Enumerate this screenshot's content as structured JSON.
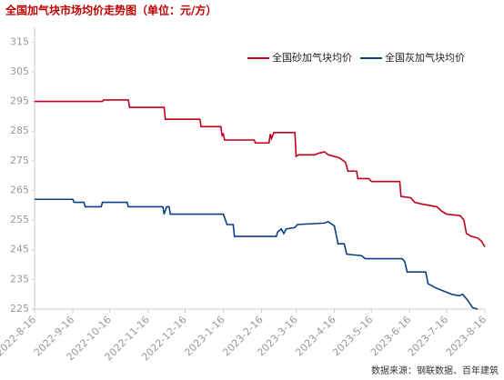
{
  "chart_data": {
    "type": "line",
    "title": "全国加气块市场均价走势图（单位：元/方）",
    "source": "数据来源：钢联数据、百年建筑",
    "legend": "upper right",
    "ylim": [
      225,
      320
    ],
    "yticks": [
      225,
      235,
      245,
      255,
      265,
      275,
      285,
      295,
      305,
      315
    ],
    "xlim": [
      "2022-8-16",
      "2023-8-16"
    ],
    "xticks": [
      "2022-8-16",
      "2022-9-16",
      "2022-10-16",
      "2022-11-16",
      "2022-12-16",
      "2023-1-16",
      "2023-2-16",
      "2023-3-16",
      "2023-4-16",
      "2023-5-16",
      "2023-6-16",
      "2023-7-16",
      "2023-8-16"
    ],
    "series": [
      {
        "name": "全国砂加气块均价",
        "color": "#c0001a",
        "x": [
          "2022-8-16",
          "2022-10-10",
          "2022-10-11",
          "2022-10-31",
          "2022-11-1",
          "2022-11-29",
          "2022-11-30",
          "2022-12-28",
          "2022-12-29",
          "2023-1-14",
          "2023-1-15",
          "2023-1-16",
          "2023-1-17",
          "2023-2-10",
          "2023-2-11",
          "2023-2-22",
          "2023-2-23",
          "2023-2-24",
          "2023-2-26",
          "2023-3-15",
          "2023-3-16",
          "2023-3-18",
          "2023-3-31",
          "2023-4-3",
          "2023-4-8",
          "2023-4-11",
          "2023-4-20",
          "2023-4-25",
          "2023-4-27",
          "2023-5-4",
          "2023-5-5",
          "2023-5-14",
          "2023-5-16",
          "2023-6-8",
          "2023-6-9",
          "2023-6-17",
          "2023-6-20",
          "2023-6-25",
          "2023-7-8",
          "2023-7-12",
          "2023-7-16",
          "2023-7-27",
          "2023-7-30",
          "2023-8-1",
          "2023-8-5",
          "2023-8-10",
          "2023-8-13",
          "2023-8-16"
        ],
        "values": [
          295,
          295,
          295.5,
          295.5,
          293,
          293,
          289,
          289,
          286.5,
          286.5,
          283.5,
          284,
          282,
          282,
          281,
          281,
          284,
          282.5,
          284.5,
          284.5,
          276.5,
          277,
          277,
          277.5,
          278,
          277,
          276,
          274.5,
          271.5,
          271.5,
          269,
          269,
          268,
          268,
          263,
          262.5,
          261,
          260.5,
          259.5,
          258,
          257,
          256.5,
          255,
          250.5,
          249.5,
          249,
          248,
          246
        ]
      },
      {
        "name": "全国灰加气块均价",
        "color": "#0b3f86",
        "x": [
          "2022-8-16",
          "2022-9-16",
          "2022-9-17",
          "2022-9-25",
          "2022-9-26",
          "2022-10-9",
          "2022-10-10",
          "2022-10-30",
          "2022-10-31",
          "2022-11-28",
          "2022-11-29",
          "2022-12-1",
          "2022-12-3",
          "2022-12-4",
          "2023-1-16",
          "2023-1-19",
          "2023-1-24",
          "2023-1-25",
          "2023-2-28",
          "2023-3-1",
          "2023-3-4",
          "2023-3-6",
          "2023-3-8",
          "2023-3-15",
          "2023-3-17",
          "2023-4-8",
          "2023-4-11",
          "2023-4-16",
          "2023-4-19",
          "2023-4-24",
          "2023-4-26",
          "2023-5-8",
          "2023-5-11",
          "2023-6-10",
          "2023-6-12",
          "2023-6-14",
          "2023-6-29",
          "2023-7-1",
          "2023-7-8",
          "2023-7-14",
          "2023-7-20",
          "2023-7-26",
          "2023-7-29",
          "2023-8-2",
          "2023-8-6",
          "2023-8-10"
        ],
        "values": [
          262,
          262,
          261,
          261,
          259.5,
          259.5,
          261,
          261,
          259.5,
          259.5,
          257,
          259.5,
          259.5,
          257,
          257,
          253.5,
          253.5,
          249.5,
          249.5,
          251,
          252,
          250.5,
          252,
          252.5,
          253.5,
          254,
          254.5,
          253,
          247,
          247,
          243.5,
          243,
          242,
          242,
          241,
          237.5,
          237.5,
          233.5,
          232,
          231,
          230,
          229.5,
          230,
          228,
          225.5,
          225
        ]
      }
    ]
  }
}
